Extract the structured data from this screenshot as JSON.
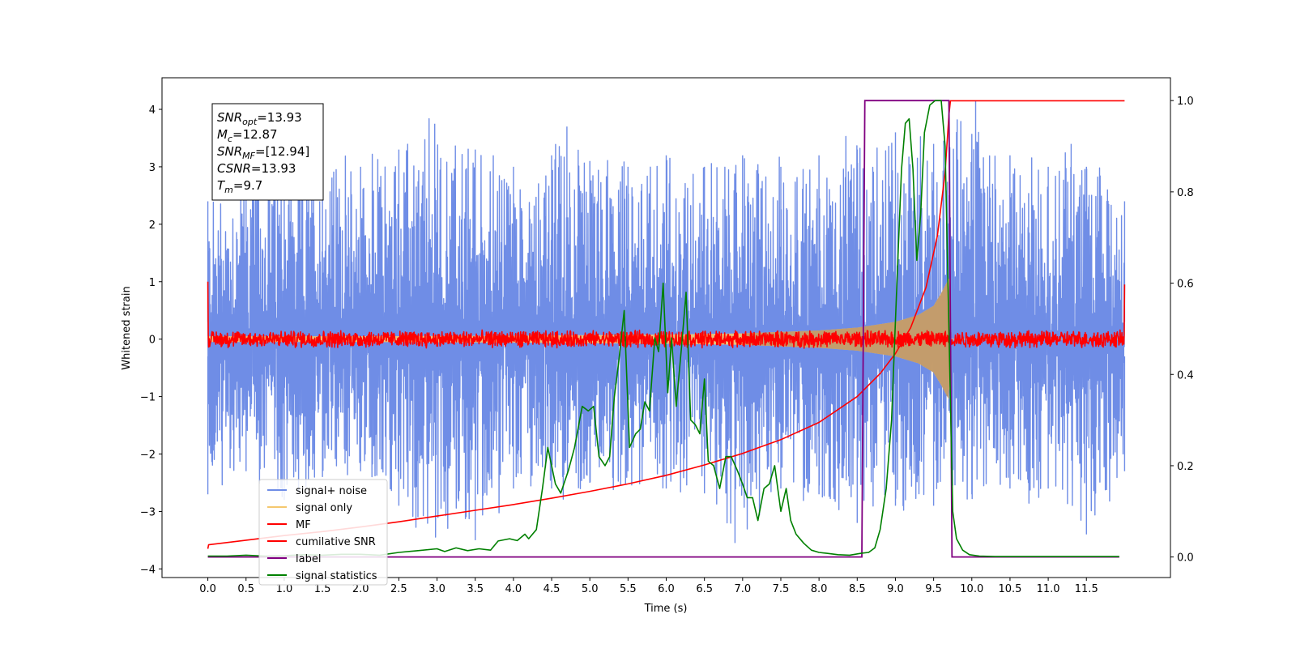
{
  "chart_data": {
    "type": "line",
    "title": "",
    "xlabel": "Time (s)",
    "ylabel": "Whitened strain",
    "ylabel_right": "",
    "xlim": [
      -0.6,
      12.6
    ],
    "ylim": [
      -4.15,
      4.55
    ],
    "ylim_right": [
      -0.045,
      1.05
    ],
    "grid": false,
    "legend_position": "lower-left",
    "x_ticks": [
      0.0,
      0.5,
      1.0,
      1.5,
      2.0,
      2.5,
      3.0,
      3.5,
      4.0,
      4.5,
      5.0,
      5.5,
      6.0,
      6.5,
      7.0,
      7.5,
      8.0,
      8.5,
      9.0,
      9.5,
      10.0,
      10.5,
      11.0,
      11.5
    ],
    "x_tick_labels": [
      "0.0",
      "0.5",
      "1.0",
      "1.5",
      "2.0",
      "2.5",
      "3.0",
      "3.5",
      "4.0",
      "4.5",
      "5.0",
      "5.5",
      "6.0",
      "6.5",
      "7.0",
      "7.5",
      "8.0",
      "8.5",
      "9.0",
      "9.5",
      "10.0",
      "10.5",
      "11.0",
      "11.5"
    ],
    "y_ticks": [
      4,
      3,
      2,
      1,
      0,
      -1,
      -2,
      -3,
      -4
    ],
    "y_tick_labels": [
      "4",
      "3",
      "2",
      "1",
      "0",
      "−1",
      "−2",
      "−3",
      "−4"
    ],
    "y_right_ticks": [
      1.0,
      0.8,
      0.6,
      0.4,
      0.2,
      0.0
    ],
    "y_right_tick_labels": [
      "1.0",
      "0.8",
      "0.6",
      "0.4",
      "0.2",
      "0.0"
    ],
    "annotation": {
      "lines": [
        {
          "sym": "SNR",
          "sub": "opt",
          "value": "=13.93"
        },
        {
          "sym": "M",
          "sub": "c",
          "value": "=12.87"
        },
        {
          "sym": "SNR",
          "sub": "MF",
          "value": "=[12.94]"
        },
        {
          "sym": "CSNR",
          "sub": "",
          "value": "=13.93"
        },
        {
          "sym": "T",
          "sub": "m",
          "value": "=9.7"
        }
      ]
    },
    "series": [
      {
        "name": "signal+ noise",
        "color": "#6f8de6",
        "axis": "left",
        "kind": "noise_band",
        "x_range": [
          0.0,
          12.0
        ],
        "envelope_peaks": [
          [
            0.0,
            2.4
          ],
          [
            0.5,
            3.1
          ],
          [
            1.0,
            3.2
          ],
          [
            1.5,
            3.1
          ],
          [
            2.0,
            3.0
          ],
          [
            2.5,
            3.3
          ],
          [
            2.97,
            3.75
          ],
          [
            3.5,
            3.3
          ],
          [
            4.0,
            3.0
          ],
          [
            4.5,
            3.2
          ],
          [
            4.7,
            3.7
          ],
          [
            5.0,
            3.1
          ],
          [
            5.5,
            3.0
          ],
          [
            6.0,
            3.2
          ],
          [
            6.5,
            3.0
          ],
          [
            7.0,
            3.2
          ],
          [
            7.5,
            3.0
          ],
          [
            8.0,
            3.2
          ],
          [
            8.5,
            3.3
          ],
          [
            9.0,
            3.6
          ],
          [
            9.5,
            3.4
          ],
          [
            10.05,
            4.15
          ],
          [
            10.5,
            3.2
          ],
          [
            11.0,
            3.0
          ],
          [
            11.3,
            3.4
          ],
          [
            11.5,
            3.0
          ],
          [
            12.0,
            2.4
          ]
        ],
        "envelope_troughs": [
          [
            0.0,
            -2.7
          ],
          [
            0.5,
            -2.3
          ],
          [
            1.0,
            -2.8
          ],
          [
            1.5,
            -2.4
          ],
          [
            2.0,
            -2.3
          ],
          [
            2.5,
            -2.9
          ],
          [
            2.75,
            -3.1
          ],
          [
            3.5,
            -3.5
          ],
          [
            4.0,
            -2.6
          ],
          [
            4.5,
            -2.6
          ],
          [
            5.0,
            -2.5
          ],
          [
            5.5,
            -2.3
          ],
          [
            6.0,
            -2.6
          ],
          [
            6.5,
            -2.5
          ],
          [
            6.9,
            -3.55
          ],
          [
            7.5,
            -2.6
          ],
          [
            8.0,
            -2.7
          ],
          [
            8.5,
            -3.2
          ],
          [
            9.0,
            -2.9
          ],
          [
            9.5,
            -2.9
          ],
          [
            10.0,
            -2.7
          ],
          [
            10.5,
            -2.6
          ],
          [
            11.0,
            -2.6
          ],
          [
            11.5,
            -3.4
          ],
          [
            12.0,
            -2.3
          ]
        ]
      },
      {
        "name": "signal only",
        "color": "#f5c86e",
        "axis": "left",
        "kind": "chirp_envelope",
        "amplitude": [
          [
            0.0,
            0.05
          ],
          [
            2.0,
            0.05
          ],
          [
            4.0,
            0.06
          ],
          [
            6.0,
            0.08
          ],
          [
            7.0,
            0.1
          ],
          [
            8.0,
            0.15
          ],
          [
            8.5,
            0.2
          ],
          [
            9.0,
            0.3
          ],
          [
            9.3,
            0.42
          ],
          [
            9.5,
            0.58
          ],
          [
            9.6,
            0.8
          ],
          [
            9.7,
            1.05
          ],
          [
            9.73,
            0.0
          ],
          [
            12.0,
            0.0
          ]
        ]
      },
      {
        "name": "MF",
        "color": "#ff0000",
        "axis": "left",
        "kind": "noise_band",
        "x_range": [
          0.0,
          12.0
        ],
        "center": 0.0,
        "spread": 0.12,
        "start_value": 1.0,
        "end_value": 0.95
      },
      {
        "name": "cumilative SNR",
        "color": "#ff0000",
        "axis": "left",
        "kind": "line",
        "x": [
          0.0,
          0.01,
          0.5,
          1.0,
          1.5,
          2.0,
          2.5,
          3.0,
          3.5,
          4.0,
          4.5,
          5.0,
          5.5,
          6.0,
          6.5,
          7.0,
          7.5,
          8.0,
          8.5,
          8.8,
          9.0,
          9.2,
          9.4,
          9.55,
          9.65,
          9.7,
          9.72,
          10.0,
          11.0,
          12.0
        ],
        "y": [
          -3.65,
          -3.58,
          -3.5,
          -3.42,
          -3.35,
          -3.27,
          -3.18,
          -3.08,
          -2.98,
          -2.88,
          -2.77,
          -2.65,
          -2.52,
          -2.37,
          -2.19,
          -1.99,
          -1.75,
          -1.45,
          -1.0,
          -0.6,
          -0.25,
          0.2,
          0.9,
          1.8,
          2.9,
          3.9,
          4.15,
          4.15,
          4.15,
          4.15
        ]
      },
      {
        "name": "label",
        "color": "#800080",
        "axis": "right",
        "kind": "line",
        "x": [
          0.0,
          8.56,
          8.6,
          9.7,
          9.74,
          11.93
        ],
        "y": [
          0.0,
          0.0,
          1.0,
          1.0,
          0.0,
          0.0
        ]
      },
      {
        "name": "signal statistics",
        "color": "#008000",
        "axis": "right",
        "kind": "line",
        "x": [
          0.0,
          0.25,
          0.5,
          0.75,
          1.0,
          1.25,
          1.5,
          1.75,
          2.0,
          2.25,
          2.5,
          2.75,
          3.0,
          3.1,
          3.25,
          3.4,
          3.55,
          3.7,
          3.8,
          3.95,
          4.05,
          4.15,
          4.2,
          4.3,
          4.38,
          4.45,
          4.55,
          4.62,
          4.72,
          4.8,
          4.9,
          4.98,
          5.05,
          5.12,
          5.2,
          5.26,
          5.32,
          5.38,
          5.45,
          5.52,
          5.6,
          5.66,
          5.72,
          5.78,
          5.85,
          5.9,
          5.96,
          6.02,
          6.07,
          6.13,
          6.2,
          6.26,
          6.32,
          6.38,
          6.44,
          6.5,
          6.55,
          6.62,
          6.7,
          6.78,
          6.85,
          6.93,
          7.0,
          7.06,
          7.13,
          7.2,
          7.28,
          7.35,
          7.42,
          7.5,
          7.57,
          7.63,
          7.7,
          7.8,
          7.9,
          8.0,
          8.1,
          8.25,
          8.4,
          8.55,
          8.65,
          8.73,
          8.8,
          8.88,
          8.95,
          9.02,
          9.08,
          9.13,
          9.18,
          9.23,
          9.28,
          9.33,
          9.38,
          9.45,
          9.52,
          9.6,
          9.65,
          9.7,
          9.75,
          9.8,
          9.88,
          9.97,
          10.1,
          10.3,
          10.6,
          11.0,
          11.5,
          11.93
        ],
        "y": [
          0.002,
          0.002,
          0.004,
          0.002,
          0.003,
          0.005,
          0.004,
          0.006,
          0.006,
          0.004,
          0.01,
          0.014,
          0.018,
          0.012,
          0.02,
          0.014,
          0.018,
          0.015,
          0.035,
          0.04,
          0.036,
          0.05,
          0.04,
          0.06,
          0.15,
          0.24,
          0.16,
          0.14,
          0.19,
          0.24,
          0.33,
          0.32,
          0.33,
          0.22,
          0.2,
          0.22,
          0.35,
          0.43,
          0.54,
          0.24,
          0.27,
          0.28,
          0.34,
          0.32,
          0.48,
          0.45,
          0.6,
          0.36,
          0.48,
          0.33,
          0.46,
          0.58,
          0.3,
          0.29,
          0.27,
          0.39,
          0.21,
          0.2,
          0.15,
          0.22,
          0.22,
          0.19,
          0.16,
          0.13,
          0.13,
          0.08,
          0.15,
          0.16,
          0.2,
          0.1,
          0.15,
          0.08,
          0.05,
          0.03,
          0.015,
          0.01,
          0.008,
          0.005,
          0.004,
          0.008,
          0.01,
          0.02,
          0.06,
          0.15,
          0.3,
          0.6,
          0.85,
          0.95,
          0.96,
          0.85,
          0.65,
          0.75,
          0.93,
          0.99,
          1.0,
          1.0,
          0.9,
          0.5,
          0.1,
          0.04,
          0.015,
          0.005,
          0.002,
          0.001,
          0.001,
          0.001,
          0.001,
          0.001
        ]
      }
    ]
  }
}
